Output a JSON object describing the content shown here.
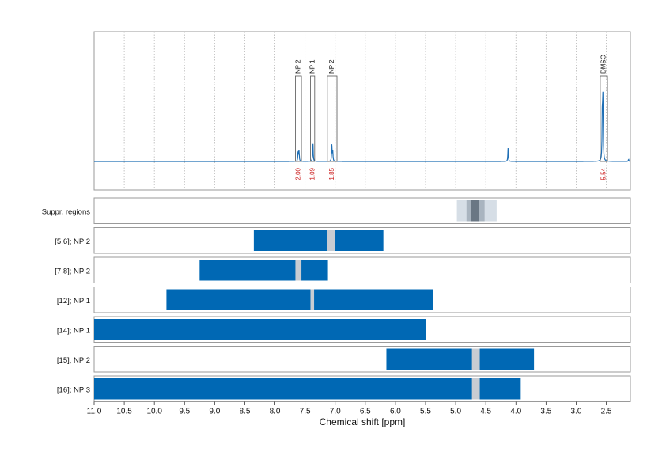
{
  "chart_data": {
    "type": "nmr-spectrum-with-range-bars",
    "xlabel": "Chemical shift [ppm]",
    "xlim": [
      11.0,
      2.1
    ],
    "x_ticks": [
      11.0,
      10.5,
      10.0,
      9.5,
      9.0,
      8.5,
      8.0,
      7.5,
      7.0,
      6.5,
      6.0,
      5.5,
      5.0,
      4.5,
      4.0,
      3.5,
      3.0,
      2.5
    ],
    "x_tick_labels": [
      "11.0",
      "10.5",
      "10.0",
      "9.5",
      "9.0",
      "8.5",
      "8.0",
      "7.5",
      "7.0",
      "6.5",
      "6.0",
      "5.5",
      "5.0",
      "4.5",
      "4.0",
      "3.5",
      "3.0",
      "2.5"
    ],
    "grid": "vertical dotted",
    "colors": {
      "spectrum": "#1f6fb5",
      "bar": "#0068b4",
      "gap": "#c8ccd2",
      "annotation": "#cc2222",
      "suppr_light": "#d6dee6",
      "suppr_mid": "#a9b4bf",
      "suppr_dark": "#6a7784"
    },
    "spectrum": {
      "peaks": [
        {
          "ppm": 7.615,
          "height": 0.14
        },
        {
          "ppm": 7.6,
          "height": 0.14
        },
        {
          "ppm": 7.37,
          "height": 0.27
        },
        {
          "ppm": 7.055,
          "height": 0.22
        },
        {
          "ppm": 7.04,
          "height": 0.12
        },
        {
          "ppm": 4.13,
          "height": 0.17
        },
        {
          "ppm": 2.565,
          "height": 0.7
        },
        {
          "ppm": 2.555,
          "height": 0.75
        },
        {
          "ppm": 2.13,
          "height": 0.03
        }
      ],
      "annotations": [
        {
          "label": "NP 2",
          "from": 7.66,
          "to": 7.56,
          "integral": "2.00"
        },
        {
          "label": "NP 1",
          "from": 7.41,
          "to": 7.34,
          "integral": "1.09"
        },
        {
          "label": "NP 2",
          "from": 7.13,
          "to": 6.97,
          "integral": "1.85"
        },
        {
          "label": "DMSO",
          "from": 2.6,
          "to": 2.48,
          "integral": "5.54"
        }
      ]
    },
    "rows": [
      {
        "label": "Suppr. regions",
        "kind": "suppression",
        "bands": [
          {
            "from": 4.98,
            "to": 4.32,
            "shade": "light"
          },
          {
            "from": 4.82,
            "to": 4.52,
            "shade": "mid"
          },
          {
            "from": 4.74,
            "to": 4.62,
            "shade": "dark"
          }
        ]
      },
      {
        "label": "[5,6]; NP 2",
        "bar": [
          8.35,
          6.2
        ],
        "gaps": [
          [
            7.14,
            7.0
          ]
        ]
      },
      {
        "label": "[7,8]; NP 2",
        "bar": [
          9.25,
          7.12
        ],
        "gaps": [
          [
            7.66,
            7.56
          ]
        ]
      },
      {
        "label": "[12]; NP 1",
        "bar": [
          9.8,
          5.37
        ],
        "gaps": [
          [
            7.41,
            7.35
          ]
        ]
      },
      {
        "label": "[14]; NP 1",
        "bar": [
          11.0,
          5.5
        ],
        "gaps": []
      },
      {
        "label": "[15]; NP 2",
        "bar": [
          6.15,
          3.7
        ],
        "gaps": [
          [
            4.73,
            4.6
          ]
        ]
      },
      {
        "label": "[16]; NP 3",
        "bar": [
          11.0,
          3.92
        ],
        "gaps": [
          [
            4.73,
            4.6
          ]
        ]
      }
    ]
  }
}
